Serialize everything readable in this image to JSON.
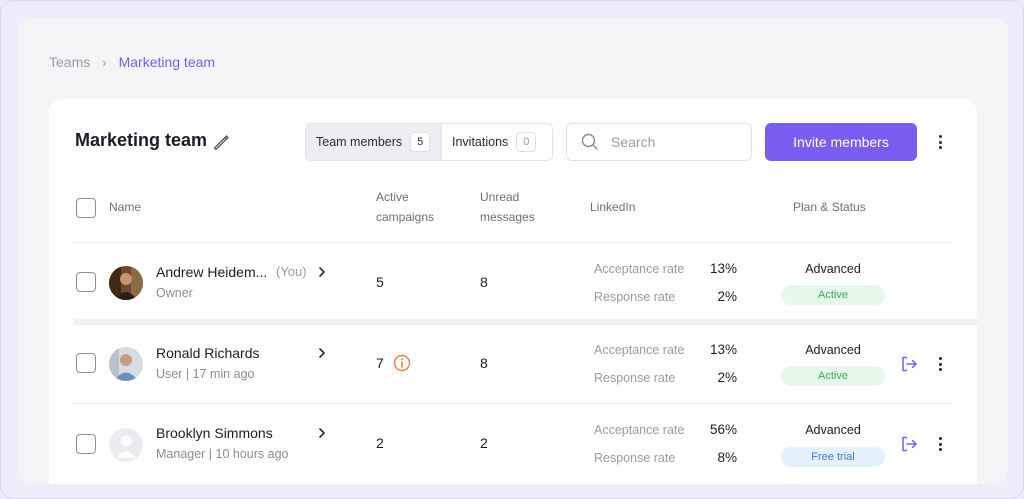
{
  "breadcrumb": {
    "root": "Teams",
    "separator": "›",
    "current": "Marketing team"
  },
  "team": {
    "title": "Marketing team"
  },
  "tabs": [
    {
      "label": "Team members",
      "count": "5"
    },
    {
      "label": "Invitations",
      "count": "0"
    }
  ],
  "search": {
    "placeholder": "Search",
    "value": ""
  },
  "actions": {
    "invite_label": "Invite members"
  },
  "columns": {
    "name": "Name",
    "active_campaigns_l1": "Active",
    "active_campaigns_l2": "campaigns",
    "unread_l1": "Unread",
    "unread_l2": "messages",
    "linkedin": "LinkedIn",
    "plan_status": "Plan & Status"
  },
  "members": [
    {
      "name": "Andrew Heidem...",
      "you_tag": "(You)",
      "role": "Owner",
      "active_campaigns": "5",
      "unread_messages": "8",
      "acceptance_label": "Acceptance rate",
      "acceptance_value": "13%",
      "response_label": "Response rate",
      "response_value": "2%",
      "plan": "Advanced",
      "status": "Active"
    },
    {
      "name": "Ronald Richards",
      "role": "User | 17 min ago",
      "active_campaigns": "7",
      "unread_messages": "8",
      "acceptance_label": "Acceptance rate",
      "acceptance_value": "13%",
      "response_label": "Response rate",
      "response_value": "2%",
      "plan": "Advanced",
      "status": "Active"
    },
    {
      "name": "Brooklyn Simmons",
      "role": "Manager | 10 hours ago",
      "active_campaigns": "2",
      "unread_messages": "2",
      "acceptance_label": "Acceptance rate",
      "acceptance_value": "56%",
      "response_label": "Response rate",
      "response_value": "8%",
      "plan": "Advanced",
      "status": "Free trial"
    }
  ],
  "colors": {
    "accent": "#7a5cf0",
    "active_bg": "#e6f8ea",
    "active_text": "#3daa5c",
    "trial_bg": "#e5f1fd",
    "trial_text": "#3d7ad0",
    "warning": "#f07a3c"
  },
  "icons": [
    "edit-pencil-icon",
    "search-icon",
    "more-vertical-icon",
    "chevron-right-icon",
    "info-icon",
    "exit-icon"
  ]
}
